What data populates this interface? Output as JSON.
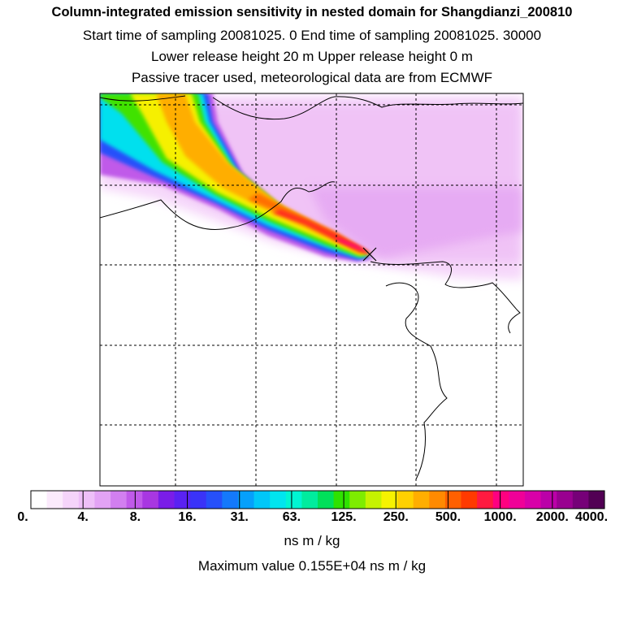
{
  "titles": {
    "line1": "Column-integrated emission sensitivity in nested domain for Shangdianzi_200810",
    "line2": "Start time of sampling 20081025.     0     End time of sampling 20081025. 30000",
    "line3": "Lower release height   20 m          Upper release height    0 m",
    "line4": "Passive tracer used, meteorological data are from ECMWF"
  },
  "colorbar": {
    "colors": [
      "#ffffff",
      "#fbeafc",
      "#f5d4fa",
      "#eebff8",
      "#e3a3f5",
      "#d27ff0",
      "#c05ae9",
      "#a837e1",
      "#7a1de8",
      "#5a22f2",
      "#3a33f8",
      "#2650fa",
      "#1479fb",
      "#06a0fb",
      "#00c7f8",
      "#00e5ef",
      "#00f5d2",
      "#00ec9e",
      "#00e05a",
      "#2fe200",
      "#7eec00",
      "#c6f200",
      "#f6f200",
      "#ffd100",
      "#ffae00",
      "#ff8a00",
      "#ff6000",
      "#ff3a00",
      "#ff1a40",
      "#ff0080",
      "#f00098",
      "#d800a8",
      "#bb00a8",
      "#990090",
      "#760078",
      "#520054"
    ],
    "tick_labels": [
      "0.",
      "4.",
      "8.",
      "16.",
      "31.",
      "63.",
      "125.",
      "250.",
      "500.",
      "1000.",
      "2000.",
      "4000."
    ]
  },
  "units_label": "ns m / kg",
  "max_value_label": "Maximum value  0.155E+04 ns m / kg",
  "receptor_marker": "x-marker-icon"
}
